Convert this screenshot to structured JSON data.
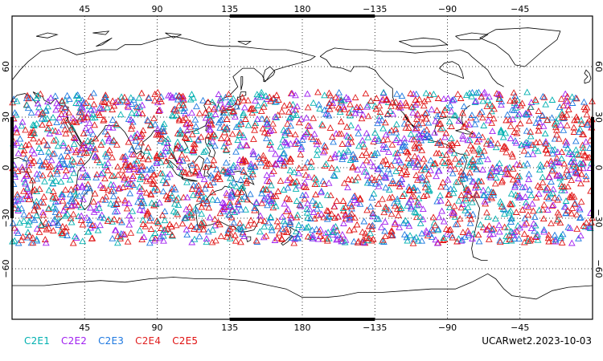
{
  "map": {
    "type": "global scatter map",
    "top_lon_labels": [
      "45",
      "90",
      "135",
      "180",
      "−135",
      "−90",
      "−45"
    ],
    "bottom_lon_labels": [
      "45",
      "90",
      "135",
      "180",
      "−135",
      "−90",
      "−45"
    ],
    "left_lat_labels": [
      "60",
      "30",
      "0",
      "−30",
      "−60"
    ],
    "right_lat_labels": [
      "60",
      "30",
      "0",
      "−30",
      "−60"
    ],
    "lon_ticks": [
      45,
      90,
      135,
      180,
      225,
      270,
      315
    ],
    "lat_ticks": [
      60,
      30,
      0,
      -30,
      -60
    ],
    "lon_range": [
      0,
      360
    ],
    "lat_range": [
      -90,
      90
    ],
    "observation_lat_range": [
      -45,
      45
    ],
    "marker": "triangle-outline",
    "grid": "dotted",
    "coastline_color": "#000000"
  },
  "legend": {
    "items": [
      {
        "label": "C2E1",
        "color": "#00b0b0"
      },
      {
        "label": "C2E2",
        "color": "#a020f0"
      },
      {
        "label": "C2E3",
        "color": "#1e78e0"
      },
      {
        "label": "C2E4",
        "color": "#e02020"
      },
      {
        "label": "C2E5",
        "color": "#e01010"
      }
    ]
  },
  "title": {
    "text": "UCARwet2.2023-10-03"
  }
}
